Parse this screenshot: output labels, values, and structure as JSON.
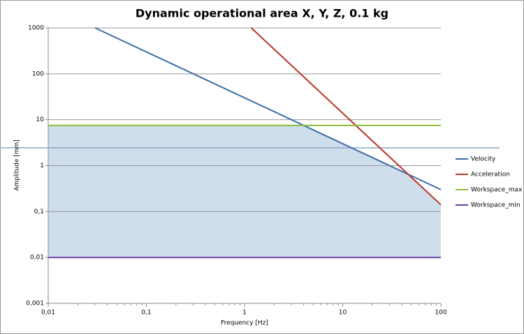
{
  "chart_data": {
    "type": "line",
    "title": "Dynamic operational area X, Y, Z, 0.1 kg",
    "x_label": "Frequency [Hz]",
    "y_label": "Amplitude [mm]",
    "log_x": true,
    "log_y": true,
    "grid": true,
    "legend": "right",
    "area_color": "#cfdeec",
    "xlim": [
      0.01,
      100
    ],
    "xticks": [
      {
        "value": 0.01,
        "label": "0,01"
      },
      {
        "value": 0.1,
        "label": "0,1"
      },
      1,
      10,
      100
    ],
    "ylim": [
      0.001,
      1000
    ],
    "yticks": [
      {
        "value": 0.001,
        "label": "0,001"
      },
      {
        "value": 0.01,
        "label": "0,01"
      },
      {
        "value": 0.1,
        "label": "0,1"
      },
      1,
      10,
      100,
      1000
    ],
    "series": [
      {
        "name": "Velocity",
        "color": "#3b6ea8",
        "x": [
          0.03,
          100
        ],
        "values": [
          1000,
          0.3
        ]
      },
      {
        "name": "Acceleration",
        "color": "#b5352b",
        "x": [
          1.17,
          100
        ],
        "values": [
          1000,
          0.14
        ]
      },
      {
        "name": "Workspace_max",
        "color": "#8cbd3a",
        "x": [
          0.01,
          100
        ],
        "values": [
          7.5,
          7.5
        ]
      },
      {
        "name": "Workspace_min",
        "color": "#6b3fa0",
        "x": [
          0.01,
          100
        ],
        "values": [
          0.01,
          0.01
        ]
      }
    ]
  }
}
